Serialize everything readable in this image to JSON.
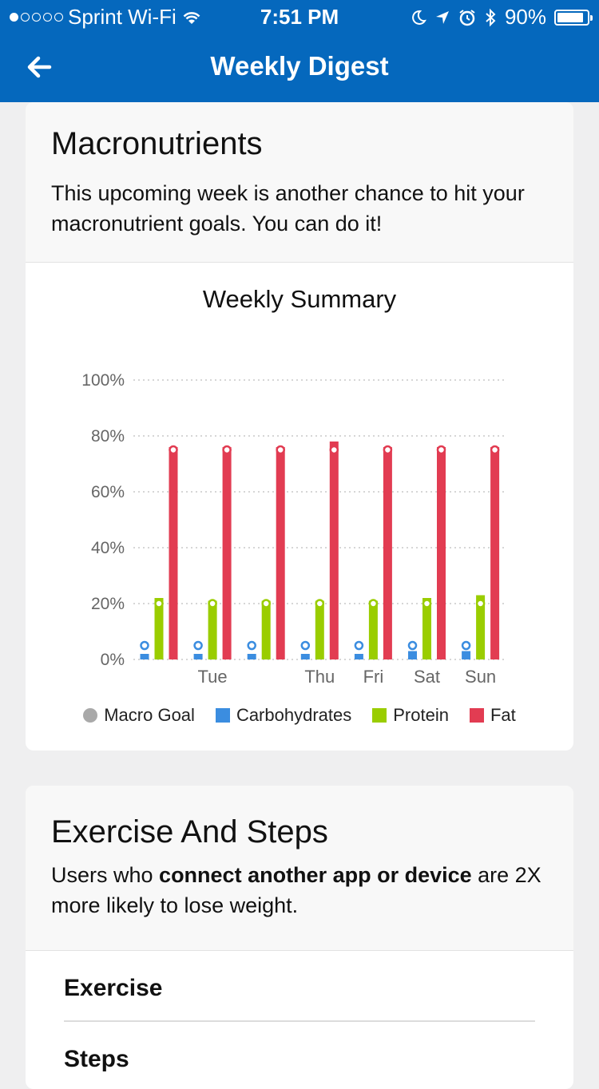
{
  "status": {
    "carrier": "Sprint Wi-Fi",
    "time": "7:51 PM",
    "battery": "90%",
    "signal_dots_filled": 1,
    "signal_dots_total": 5,
    "battery_level": 0.9
  },
  "nav": {
    "title": "Weekly Digest",
    "back_icon": "arrow-left-icon"
  },
  "macro": {
    "heading": "Macronutrients",
    "description": "This upcoming week is another chance to hit your macronutrient goals. You can do it!"
  },
  "chart_data": {
    "type": "bar",
    "title": "Weekly Summary",
    "categories": [
      "",
      "Tue",
      "",
      "Thu",
      "Fri",
      "Sat",
      "Sun"
    ],
    "ylim": [
      0,
      100
    ],
    "yticks": [
      "0%",
      "20%",
      "40%",
      "60%",
      "80%",
      "100%"
    ],
    "grid": true,
    "legend": "bottom",
    "series": [
      {
        "name": "Carbohydrates",
        "color": "#3b8de0",
        "values": [
          2,
          2,
          2,
          2,
          2,
          3,
          3
        ]
      },
      {
        "name": "Protein",
        "color": "#9acd00",
        "values": [
          22,
          21,
          21,
          21,
          21,
          22,
          23
        ]
      },
      {
        "name": "Fat",
        "color": "#e23c52",
        "values": [
          76,
          76,
          76,
          78,
          76,
          76,
          76
        ]
      }
    ],
    "goals": {
      "name": "Macro Goal",
      "color": "#a9a9a9",
      "Carbohydrates": 5,
      "Protein": 20,
      "Fat": 75
    }
  },
  "legend_items": [
    {
      "label": "Macro Goal",
      "color": "#a9a9a9",
      "shape": "circle"
    },
    {
      "label": "Carbohydrates",
      "color": "#3b8de0",
      "shape": "square"
    },
    {
      "label": "Protein",
      "color": "#9acd00",
      "shape": "square"
    },
    {
      "label": "Fat",
      "color": "#e23c52",
      "shape": "square"
    }
  ],
  "exercise": {
    "heading": "Exercise And Steps",
    "desc_pre": "Users who ",
    "desc_bold": "connect another app or device",
    "desc_post": " are 2X more likely to lose weight.",
    "rows": [
      "Exercise",
      "Steps"
    ]
  }
}
